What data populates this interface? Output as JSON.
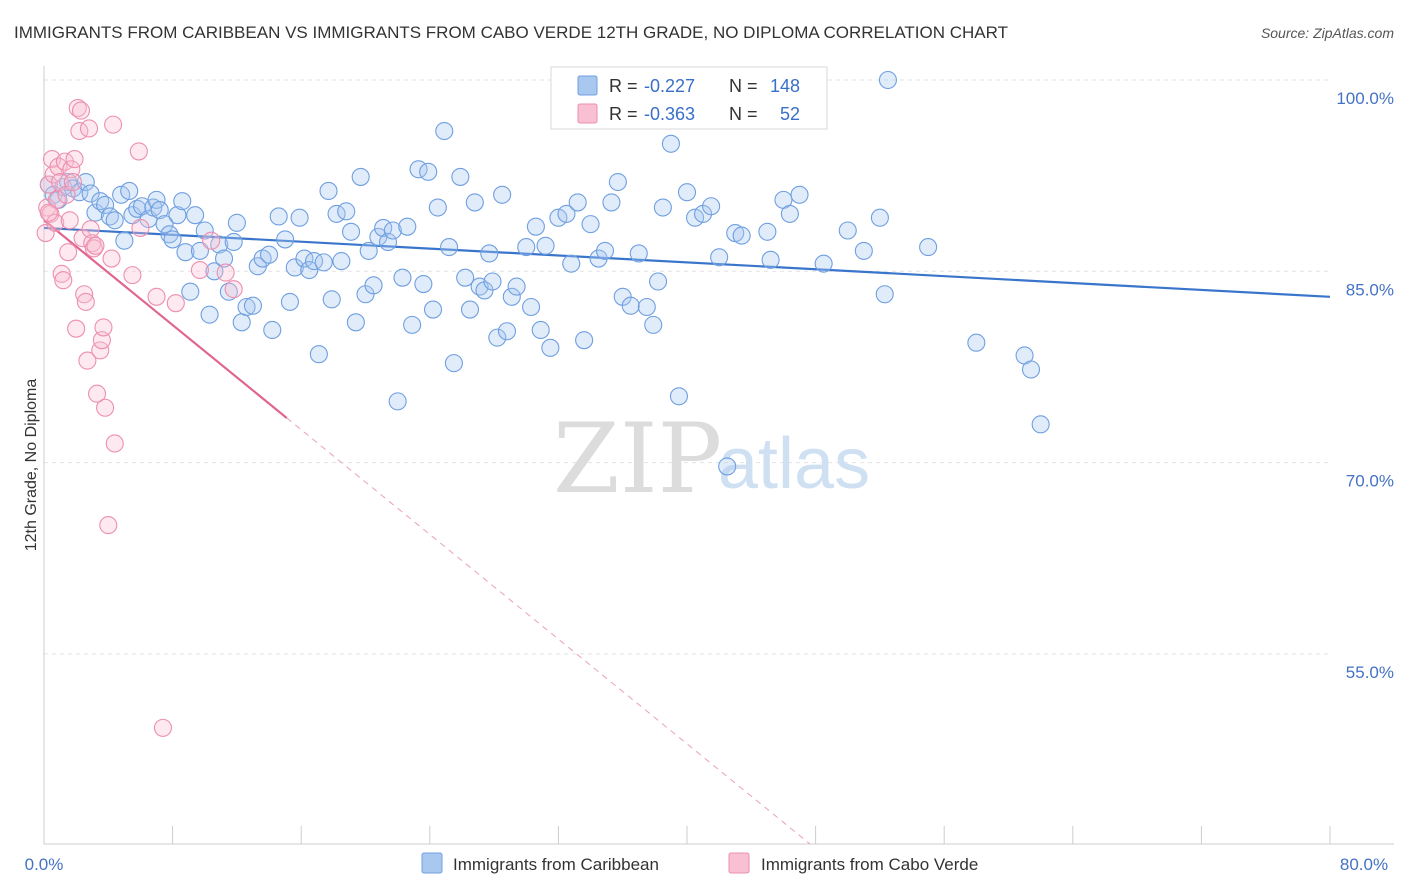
{
  "chart_data": {
    "type": "scatter",
    "title": "IMMIGRANTS FROM CARIBBEAN VS IMMIGRANTS FROM CABO VERDE 12TH GRADE, NO DIPLOMA CORRELATION CHART",
    "source": "Source: ZipAtlas.com",
    "ylabel": "12th Grade, No Diploma",
    "xlim": [
      0,
      80
    ],
    "ylim": [
      40,
      102
    ],
    "x_tick_labels": [
      "0.0%",
      "80.0%"
    ],
    "y_ticks": [
      {
        "value": 100,
        "label": "100.0%"
      },
      {
        "value": 85,
        "label": "85.0%"
      },
      {
        "value": 70,
        "label": "70.0%"
      },
      {
        "value": 55,
        "label": "55.0%"
      }
    ],
    "grid": true,
    "watermark": {
      "zip": "ZIP",
      "atlas": "atlas"
    },
    "legend": {
      "r_label": "R =",
      "n_label": "N =",
      "entries": [
        {
          "r": "-0.227",
          "n": "148",
          "color": "#a9c8f0",
          "stroke": "#6f9fe0"
        },
        {
          "r": "-0.363",
          "n": "52",
          "color": "#f8c0d2",
          "stroke": "#ec8fb0"
        }
      ]
    },
    "series": [
      {
        "name": "Immigrants from Caribbean",
        "color": "#6f9fe0",
        "fill": "rgba(169,200,240,0.35)",
        "trend": {
          "x0": 0,
          "y0": 88.4,
          "x1": 80,
          "y1": 83.0,
          "color": "#3a75cc"
        },
        "points": [
          [
            0.3,
            91.8
          ],
          [
            0.6,
            91.0
          ],
          [
            0.9,
            90.6
          ],
          [
            1.2,
            91.6
          ],
          [
            1.5,
            92.0
          ],
          [
            1.8,
            91.5
          ],
          [
            2.2,
            91.2
          ],
          [
            2.6,
            92.0
          ],
          [
            2.9,
            91.1
          ],
          [
            3.2,
            89.6
          ],
          [
            3.5,
            90.5
          ],
          [
            3.8,
            90.2
          ],
          [
            4.1,
            89.3
          ],
          [
            4.4,
            89.0
          ],
          [
            4.8,
            91.0
          ],
          [
            5.0,
            87.4
          ],
          [
            5.3,
            91.3
          ],
          [
            5.5,
            89.4
          ],
          [
            5.8,
            89.9
          ],
          [
            6.1,
            90.1
          ],
          [
            6.5,
            89.1
          ],
          [
            6.8,
            90.0
          ],
          [
            7.0,
            90.6
          ],
          [
            7.2,
            89.8
          ],
          [
            7.5,
            88.7
          ],
          [
            7.8,
            87.9
          ],
          [
            8.0,
            87.5
          ],
          [
            8.3,
            89.4
          ],
          [
            8.6,
            90.5
          ],
          [
            8.8,
            86.5
          ],
          [
            9.1,
            83.4
          ],
          [
            9.4,
            89.4
          ],
          [
            9.7,
            86.6
          ],
          [
            10.0,
            88.2
          ],
          [
            10.3,
            81.6
          ],
          [
            10.6,
            85.0
          ],
          [
            10.9,
            87.1
          ],
          [
            11.2,
            86.0
          ],
          [
            11.5,
            83.4
          ],
          [
            11.8,
            87.3
          ],
          [
            12.0,
            88.8
          ],
          [
            12.3,
            81.0
          ],
          [
            12.6,
            82.2
          ],
          [
            13.0,
            82.3
          ],
          [
            13.3,
            85.4
          ],
          [
            13.6,
            86.0
          ],
          [
            14.0,
            86.3
          ],
          [
            14.2,
            80.4
          ],
          [
            14.6,
            89.3
          ],
          [
            15.0,
            87.5
          ],
          [
            15.3,
            82.6
          ],
          [
            15.6,
            85.3
          ],
          [
            15.9,
            89.2
          ],
          [
            16.2,
            86.0
          ],
          [
            16.5,
            85.1
          ],
          [
            16.8,
            85.8
          ],
          [
            17.1,
            78.5
          ],
          [
            17.4,
            85.7
          ],
          [
            17.7,
            91.3
          ],
          [
            17.9,
            82.8
          ],
          [
            18.2,
            89.5
          ],
          [
            18.5,
            85.8
          ],
          [
            18.8,
            89.7
          ],
          [
            19.1,
            88.1
          ],
          [
            19.4,
            81.0
          ],
          [
            19.7,
            92.4
          ],
          [
            20.0,
            83.2
          ],
          [
            20.2,
            86.6
          ],
          [
            20.5,
            83.9
          ],
          [
            20.8,
            87.7
          ],
          [
            21.1,
            88.4
          ],
          [
            21.4,
            87.3
          ],
          [
            21.7,
            88.2
          ],
          [
            22.0,
            74.8
          ],
          [
            22.3,
            84.5
          ],
          [
            22.6,
            88.5
          ],
          [
            22.9,
            80.8
          ],
          [
            23.3,
            93.0
          ],
          [
            23.6,
            84.0
          ],
          [
            23.9,
            92.8
          ],
          [
            24.2,
            82.0
          ],
          [
            24.5,
            90.0
          ],
          [
            24.9,
            96.0
          ],
          [
            25.2,
            86.9
          ],
          [
            25.5,
            77.8
          ],
          [
            25.9,
            92.4
          ],
          [
            26.2,
            84.5
          ],
          [
            26.5,
            82.0
          ],
          [
            26.8,
            90.4
          ],
          [
            27.1,
            83.8
          ],
          [
            27.4,
            83.5
          ],
          [
            27.7,
            86.4
          ],
          [
            27.9,
            84.2
          ],
          [
            28.2,
            79.8
          ],
          [
            28.5,
            91.0
          ],
          [
            28.8,
            80.3
          ],
          [
            29.1,
            83.0
          ],
          [
            29.4,
            83.8
          ],
          [
            30.0,
            86.9
          ],
          [
            30.3,
            82.2
          ],
          [
            30.6,
            88.5
          ],
          [
            30.9,
            80.4
          ],
          [
            31.2,
            87.0
          ],
          [
            31.5,
            79.0
          ],
          [
            32.0,
            89.2
          ],
          [
            32.5,
            89.5
          ],
          [
            32.8,
            85.6
          ],
          [
            33.2,
            90.4
          ],
          [
            33.6,
            79.6
          ],
          [
            34.0,
            88.7
          ],
          [
            34.5,
            86.0
          ],
          [
            34.9,
            86.6
          ],
          [
            35.3,
            90.4
          ],
          [
            35.7,
            92.0
          ],
          [
            36.0,
            83.0
          ],
          [
            36.5,
            82.3
          ],
          [
            37.0,
            86.4
          ],
          [
            37.5,
            82.2
          ],
          [
            37.9,
            80.8
          ],
          [
            38.2,
            84.2
          ],
          [
            38.5,
            90.0
          ],
          [
            39.0,
            95.0
          ],
          [
            39.5,
            75.2
          ],
          [
            40.0,
            91.2
          ],
          [
            40.5,
            89.2
          ],
          [
            41.0,
            89.5
          ],
          [
            41.5,
            90.1
          ],
          [
            42.0,
            86.1
          ],
          [
            42.5,
            69.7
          ],
          [
            43.0,
            88.0
          ],
          [
            43.4,
            87.8
          ],
          [
            45.0,
            88.1
          ],
          [
            45.2,
            85.9
          ],
          [
            46.0,
            90.6
          ],
          [
            46.4,
            89.5
          ],
          [
            47.0,
            91.0
          ],
          [
            48.5,
            85.6
          ],
          [
            50.0,
            88.2
          ],
          [
            51.0,
            86.6
          ],
          [
            52.0,
            89.2
          ],
          [
            52.3,
            83.2
          ],
          [
            55.0,
            86.9
          ],
          [
            58.0,
            79.4
          ],
          [
            61.0,
            78.4
          ],
          [
            61.4,
            77.3
          ],
          [
            62.0,
            73.0
          ],
          [
            52.5,
            100.0
          ],
          [
            47.5,
            100.0
          ]
        ]
      },
      {
        "name": "Immigrants from Cabo Verde",
        "color": "#ec8fb0",
        "fill": "rgba(248,192,210,0.35)",
        "trend": {
          "x0": 0,
          "y0": 89.0,
          "x1": 15.1,
          "y1": 73.5,
          "color": "#e06690"
        },
        "trend_ext": {
          "x0": 15.1,
          "y0": 73.5,
          "x1": 80,
          "y1": 6.9,
          "color": "#e9a0bb"
        },
        "points": [
          [
            0.1,
            88.0
          ],
          [
            0.2,
            90.0
          ],
          [
            0.3,
            91.8
          ],
          [
            0.4,
            89.5
          ],
          [
            0.5,
            93.8
          ],
          [
            0.6,
            92.6
          ],
          [
            0.7,
            88.8
          ],
          [
            0.8,
            90.6
          ],
          [
            0.9,
            93.2
          ],
          [
            1.0,
            92.0
          ],
          [
            1.1,
            84.8
          ],
          [
            1.2,
            84.3
          ],
          [
            1.3,
            93.6
          ],
          [
            1.4,
            91.0
          ],
          [
            1.5,
            86.5
          ],
          [
            1.6,
            89.0
          ],
          [
            1.7,
            93.0
          ],
          [
            1.8,
            92.0
          ],
          [
            1.9,
            93.8
          ],
          [
            2.0,
            80.5
          ],
          [
            2.1,
            97.8
          ],
          [
            2.2,
            96.0
          ],
          [
            2.3,
            97.6
          ],
          [
            2.4,
            87.6
          ],
          [
            2.5,
            83.2
          ],
          [
            2.6,
            82.6
          ],
          [
            2.7,
            78.0
          ],
          [
            2.8,
            96.2
          ],
          [
            2.9,
            88.3
          ],
          [
            3.0,
            87.2
          ],
          [
            3.1,
            86.8
          ],
          [
            3.2,
            87.0
          ],
          [
            3.3,
            75.4
          ],
          [
            3.5,
            78.8
          ],
          [
            3.6,
            79.6
          ],
          [
            3.7,
            80.6
          ],
          [
            3.8,
            74.3
          ],
          [
            4.0,
            65.1
          ],
          [
            4.2,
            86.0
          ],
          [
            4.3,
            96.5
          ],
          [
            4.4,
            71.5
          ],
          [
            5.5,
            84.7
          ],
          [
            5.9,
            94.4
          ],
          [
            6.0,
            88.4
          ],
          [
            7.0,
            83.0
          ],
          [
            7.4,
            49.2
          ],
          [
            8.2,
            82.5
          ],
          [
            9.7,
            85.1
          ],
          [
            10.4,
            87.4
          ],
          [
            11.3,
            84.9
          ],
          [
            11.8,
            83.6
          ],
          [
            0.3,
            89.6
          ]
        ]
      }
    ]
  }
}
